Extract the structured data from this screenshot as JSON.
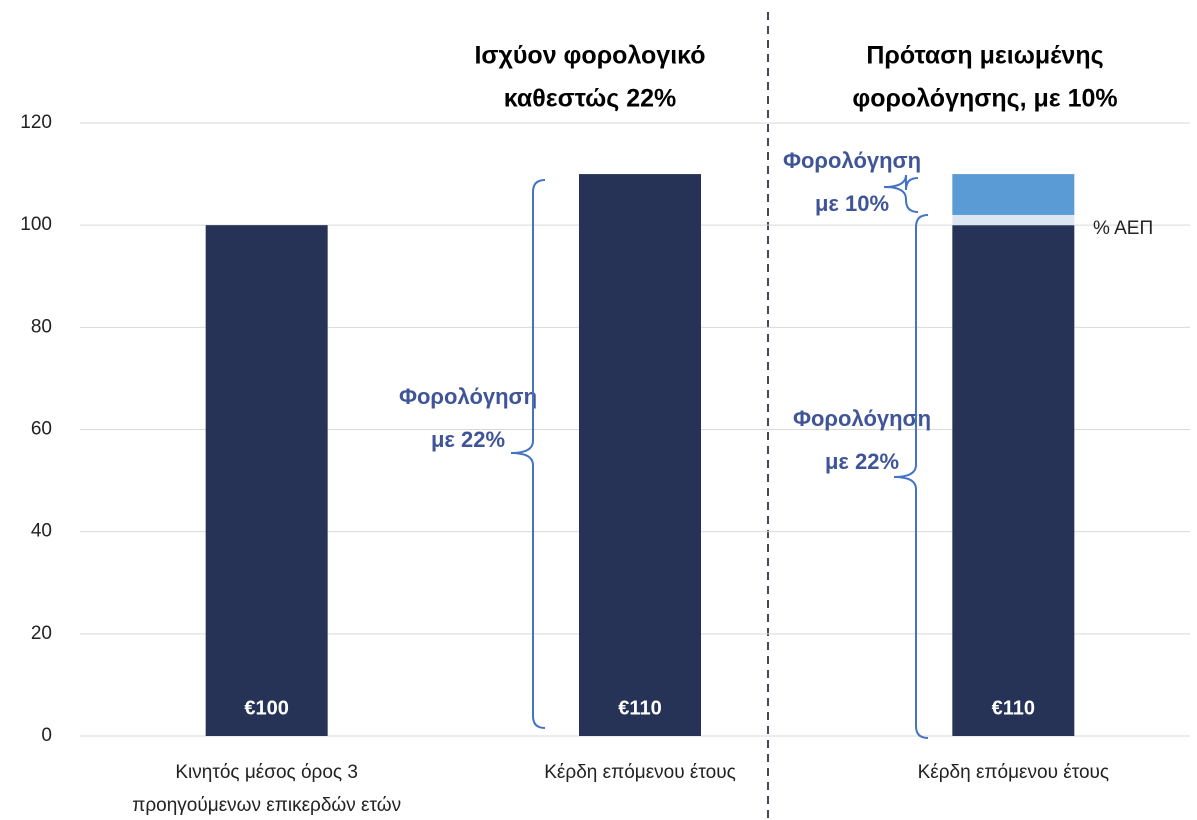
{
  "chart_data": {
    "type": "stacked_bar",
    "categories": [
      [
        "Κινητός μέσος όρος 3",
        "προηγούμενων επικερδών ετών"
      ],
      [
        "Κέρδη επόμενου έτους"
      ],
      [
        "Κέρδη επόμενου έτους"
      ]
    ],
    "series": [
      {
        "color": "#263357",
        "values": [
          100,
          110,
          100
        ]
      },
      {
        "name": "% ΑΕΠ",
        "color": "#dce6f2",
        "values": [
          0,
          0,
          2
        ]
      },
      {
        "color": "#5b9bd5",
        "values": [
          0,
          0,
          8
        ]
      }
    ],
    "bar_labels": [
      "€100",
      "€110",
      "€110"
    ],
    "ylim": [
      0,
      120
    ],
    "yticks": [
      0,
      20,
      40,
      60,
      80,
      100,
      120
    ],
    "grid": true,
    "section_titles": [
      [
        "Ισχύον φορολογικό",
        "καθεστώς 22%"
      ],
      [
        "Πρόταση μειωμένης",
        "φορολόγησης, με 10%"
      ]
    ],
    "annotations": [
      [
        "Φορολόγηση",
        "με 22%"
      ],
      [
        "Φορολόγηση",
        "με 10%"
      ],
      [
        "Φορολόγηση",
        "με 22%"
      ]
    ]
  }
}
